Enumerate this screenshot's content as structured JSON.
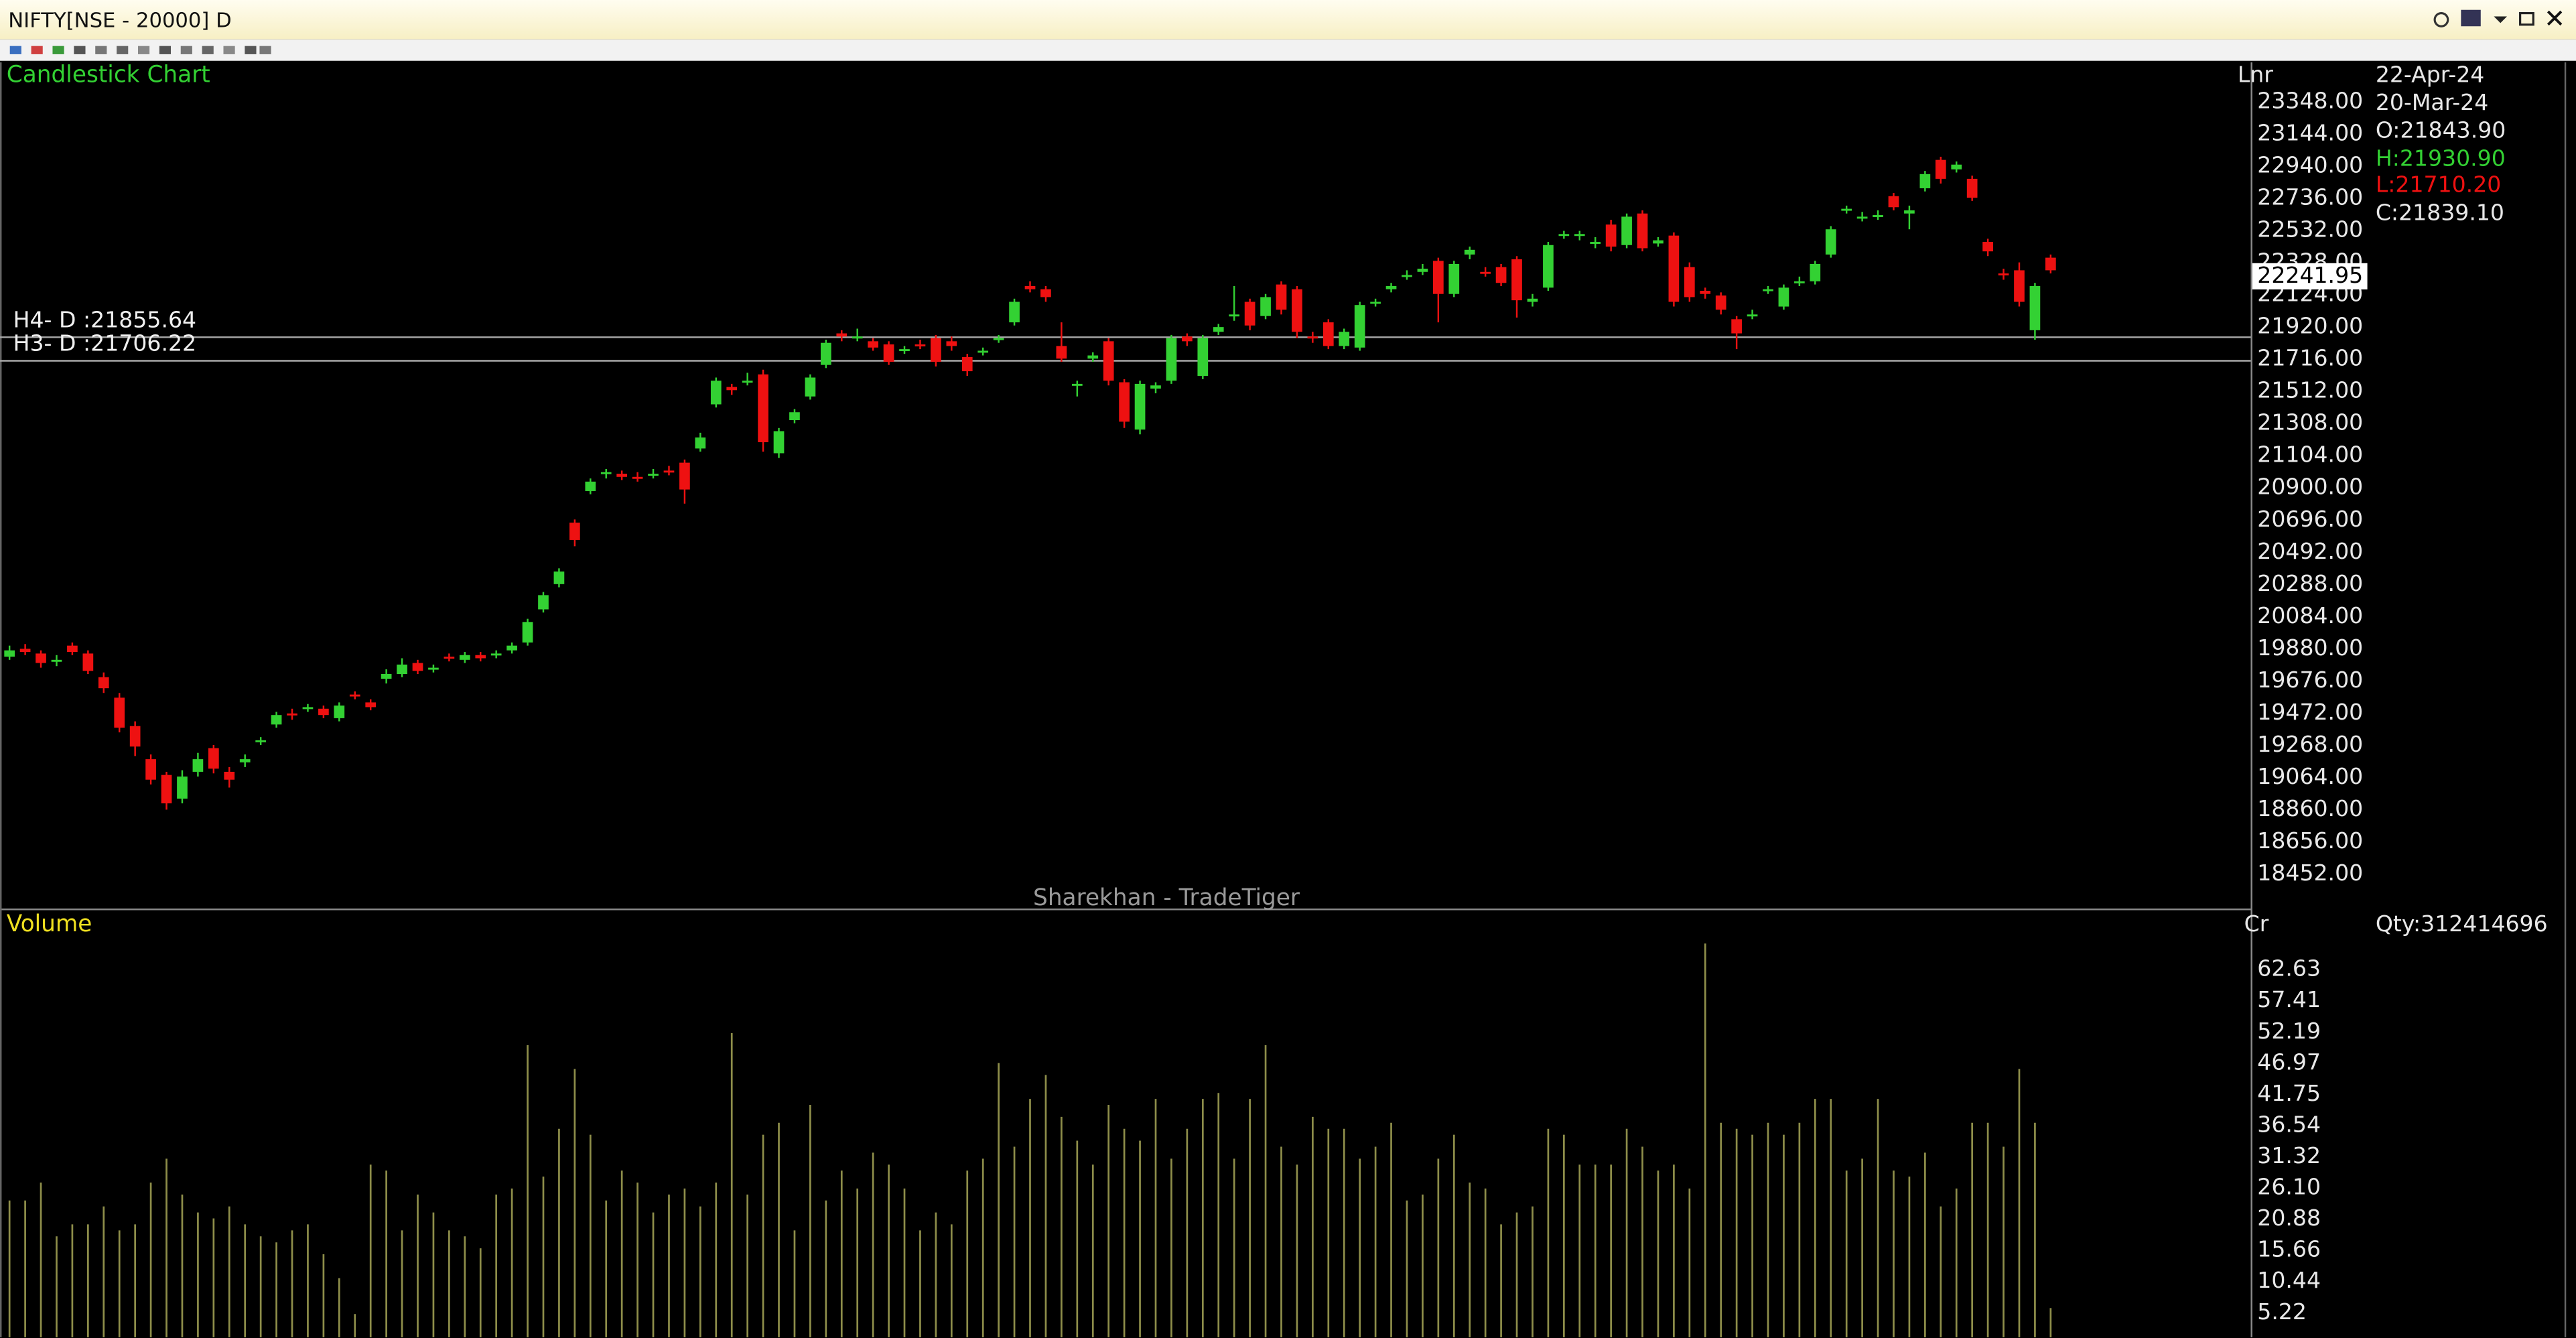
{
  "window": {
    "title": "NIFTY[NSE - 20000] D"
  },
  "chart_data": [
    {
      "type": "candlestick",
      "title": "Candlestick Chart",
      "watermark": "Sharekhan - TradeTiger",
      "scale_label": "Lnr",
      "up_color": "#33d133",
      "down_color": "#ee1111",
      "level_color": "#a8a8a8",
      "open": [
        19830,
        19880,
        19850,
        19800,
        19900,
        19850,
        19700,
        19570,
        19390,
        19180,
        19080,
        18930,
        19100,
        19250,
        19100,
        19160,
        19290,
        19400,
        19470,
        19500,
        19500,
        19440,
        19590,
        19540,
        19690,
        19720,
        19790,
        19750,
        19830,
        19810,
        19840,
        19840,
        19870,
        19920,
        20130,
        20290,
        20680,
        20880,
        20990,
        20990,
        20970,
        20990,
        21010,
        21060,
        21150,
        21430,
        21540,
        21580,
        21620,
        21120,
        21330,
        21480,
        21680,
        21880,
        21860,
        21830,
        21810,
        21770,
        21810,
        21850,
        21830,
        21730,
        21760,
        21840,
        21950,
        22180,
        22160,
        21800,
        21550,
        21720,
        21830,
        21570,
        21270,
        21530,
        21580,
        21860,
        21610,
        21890,
        21990,
        22080,
        21990,
        22190,
        22160,
        21860,
        21950,
        21800,
        21790,
        22070,
        22160,
        22240,
        22270,
        22340,
        22130,
        22380,
        22270,
        22300,
        22350,
        22080,
        22170,
        22500,
        22500,
        22460,
        22570,
        22440,
        22640,
        22450,
        22500,
        22300,
        22150,
        22120,
        21970,
        22000,
        22150,
        22050,
        22200,
        22210,
        22380,
        22660,
        22620,
        22630,
        22750,
        22640,
        22800,
        22980,
        22920,
        22860,
        22460,
        22260,
        22280,
        21900,
        22360
      ],
      "high": [
        19900,
        19910,
        19870,
        19840,
        19920,
        19870,
        19730,
        19600,
        19420,
        19210,
        19100,
        19110,
        19220,
        19270,
        19130,
        19210,
        19320,
        19480,
        19500,
        19530,
        19520,
        19540,
        19610,
        19560,
        19750,
        19820,
        19810,
        19780,
        19850,
        19860,
        19860,
        19870,
        19920,
        20070,
        20240,
        20390,
        20700,
        20960,
        21020,
        21010,
        21000,
        21020,
        21040,
        21080,
        21250,
        21600,
        21560,
        21630,
        21650,
        21280,
        21400,
        21620,
        21840,
        21900,
        21910,
        21850,
        21830,
        21800,
        21840,
        21870,
        21860,
        21750,
        21790,
        21870,
        22100,
        22210,
        22180,
        21950,
        21580,
        21760,
        21850,
        21590,
        21580,
        21570,
        21870,
        21880,
        21870,
        21940,
        22180,
        22100,
        22130,
        22210,
        22180,
        21890,
        21970,
        21910,
        22080,
        22100,
        22200,
        22280,
        22320,
        22360,
        22340,
        22430,
        22300,
        22320,
        22370,
        22130,
        22460,
        22530,
        22530,
        22490,
        22600,
        22640,
        22660,
        22490,
        22520,
        22330,
        22170,
        22140,
        21990,
        22030,
        22180,
        22190,
        22240,
        22340,
        22560,
        22690,
        22650,
        22660,
        22770,
        22690,
        22910,
        23000,
        22970,
        22880,
        22480,
        22290,
        22330,
        22200,
        22380
      ],
      "low": [
        19810,
        19840,
        19760,
        19770,
        19840,
        19720,
        19600,
        19350,
        19200,
        19020,
        18860,
        18900,
        19070,
        19090,
        19000,
        19130,
        19270,
        19380,
        19430,
        19480,
        19440,
        19420,
        19560,
        19490,
        19660,
        19700,
        19720,
        19730,
        19800,
        19790,
        19800,
        19820,
        19850,
        19900,
        20110,
        20270,
        20530,
        20860,
        20960,
        20950,
        20940,
        20960,
        20980,
        20800,
        21130,
        21410,
        21490,
        21550,
        21130,
        21090,
        21310,
        21460,
        21660,
        21830,
        21830,
        21770,
        21680,
        21750,
        21780,
        21670,
        21770,
        21610,
        21740,
        21820,
        21930,
        22140,
        22080,
        21700,
        21480,
        21700,
        21550,
        21280,
        21240,
        21500,
        21560,
        21800,
        21590,
        21870,
        21960,
        21900,
        21970,
        22000,
        21850,
        21820,
        21780,
        21780,
        21770,
        22050,
        22140,
        22220,
        22250,
        21950,
        22110,
        22350,
        22240,
        22180,
        21980,
        22050,
        22150,
        22480,
        22470,
        22420,
        22400,
        22420,
        22400,
        22430,
        22050,
        22080,
        22100,
        22000,
        21780,
        21970,
        22130,
        22030,
        22180,
        22190,
        22360,
        22640,
        22590,
        22600,
        22660,
        22540,
        22780,
        22830,
        22900,
        22720,
        22370,
        22220,
        22050,
        21840,
        22260
      ],
      "close": [
        19870,
        19860,
        19790,
        19810,
        19860,
        19740,
        19630,
        19380,
        19260,
        19050,
        18900,
        19070,
        19180,
        19120,
        19050,
        19180,
        19300,
        19460,
        19460,
        19510,
        19460,
        19520,
        19580,
        19510,
        19720,
        19780,
        19740,
        19760,
        19820,
        19840,
        19820,
        19850,
        19900,
        20050,
        20220,
        20370,
        20570,
        20940,
        21000,
        20970,
        20960,
        20990,
        21000,
        20890,
        21220,
        21580,
        21520,
        21580,
        21190,
        21260,
        21380,
        21600,
        21820,
        21860,
        21860,
        21790,
        21700,
        21780,
        21800,
        21700,
        21800,
        21640,
        21770,
        21850,
        22080,
        22160,
        22110,
        21720,
        21560,
        21740,
        21580,
        21320,
        21560,
        21550,
        21850,
        21830,
        21850,
        21920,
        22000,
        21930,
        22110,
        22030,
        21890,
        21850,
        21800,
        21890,
        22060,
        22080,
        22180,
        22250,
        22290,
        22130,
        22320,
        22410,
        22260,
        22200,
        22090,
        22100,
        22440,
        22510,
        22510,
        22460,
        22430,
        22620,
        22420,
        22470,
        22080,
        22110,
        22130,
        22030,
        21880,
        22000,
        22160,
        22170,
        22210,
        22320,
        22540,
        22670,
        22620,
        22630,
        22680,
        22660,
        22890,
        22860,
        22950,
        22740,
        22400,
        22250,
        22080,
        22180,
        22280
      ],
      "ylim": [
        18233,
        23598
      ],
      "yticks": [
        {
          "value": 18452,
          "label": "18452.00"
        },
        {
          "value": 18656,
          "label": "18656.00"
        },
        {
          "value": 18860,
          "label": "18860.00"
        },
        {
          "value": 19064,
          "label": "19064.00"
        },
        {
          "value": 19268,
          "label": "19268.00"
        },
        {
          "value": 19472,
          "label": "19472.00"
        },
        {
          "value": 19676,
          "label": "19676.00"
        },
        {
          "value": 19880,
          "label": "19880.00"
        },
        {
          "value": 20084,
          "label": "20084.00"
        },
        {
          "value": 20288,
          "label": "20288.00"
        },
        {
          "value": 20492,
          "label": "20492.00"
        },
        {
          "value": 20696,
          "label": "20696.00"
        },
        {
          "value": 20900,
          "label": "20900.00"
        },
        {
          "value": 21104,
          "label": "21104.00"
        },
        {
          "value": 21308,
          "label": "21308.00"
        },
        {
          "value": 21512,
          "label": "21512.00"
        },
        {
          "value": 21716,
          "label": "21716.00"
        },
        {
          "value": 21920,
          "label": "21920.00"
        },
        {
          "value": 22124,
          "label": "22124.00"
        },
        {
          "value": 22328,
          "label": "22328.00"
        },
        {
          "value": 22532,
          "label": "22532.00"
        },
        {
          "value": 22736,
          "label": "22736.00"
        },
        {
          "value": 22940,
          "label": "22940.00"
        },
        {
          "value": 23144,
          "label": "23144.00"
        },
        {
          "value": 23348,
          "label": "23348.00"
        }
      ],
      "levels": [
        {
          "label": "H4- D :21855.64",
          "value": 21855.64
        },
        {
          "label": "H3- D :21706.22",
          "value": 21706.22
        }
      ],
      "last_price": 22241.95
    },
    {
      "type": "bar",
      "title": "Volume",
      "unit_label": "Cr",
      "color": "#8e8e4a",
      "values": [
        24,
        24,
        27,
        18,
        20,
        20,
        23,
        19,
        20,
        27,
        31,
        25,
        22,
        21,
        23,
        20,
        18,
        17,
        19,
        20,
        15,
        11,
        5,
        30,
        29,
        19,
        25,
        22,
        19,
        18,
        16,
        25,
        26,
        50,
        28,
        36,
        46,
        35,
        24,
        29,
        27,
        22,
        25,
        26,
        23,
        27,
        52,
        25,
        35,
        37,
        19,
        40,
        24,
        29,
        26,
        32,
        30,
        26,
        19,
        22,
        20,
        29,
        31,
        47,
        33,
        41,
        45,
        38,
        34,
        30,
        40,
        36,
        34,
        41,
        31,
        36,
        41,
        42,
        31,
        41,
        50,
        33,
        30,
        38,
        36,
        36,
        31,
        33,
        37,
        24,
        25,
        31,
        35,
        27,
        26,
        20,
        22,
        23,
        36,
        35,
        30,
        30,
        30,
        36,
        33,
        29,
        30,
        26,
        67,
        37,
        36,
        35,
        37,
        35,
        37,
        41,
        41,
        29,
        31,
        41,
        29,
        28,
        32,
        23,
        26,
        37,
        37,
        33,
        46,
        37,
        6
      ],
      "ylim": [
        1.1,
        72.3
      ],
      "yticks": [
        5.22,
        10.44,
        15.66,
        20.88,
        {
          "value": 26.1,
          "label": "26.10"
        },
        31.32,
        36.54,
        41.75,
        46.97,
        52.19,
        57.41,
        62.63
      ]
    }
  ],
  "info_panel": {
    "dates": [
      "22-Apr-24",
      "20-Mar-24"
    ],
    "open": "O:21843.90",
    "high": "H:21930.90",
    "low": "L:21710.20",
    "close": "C:21839.10",
    "quantity": "Qty:312414696"
  }
}
